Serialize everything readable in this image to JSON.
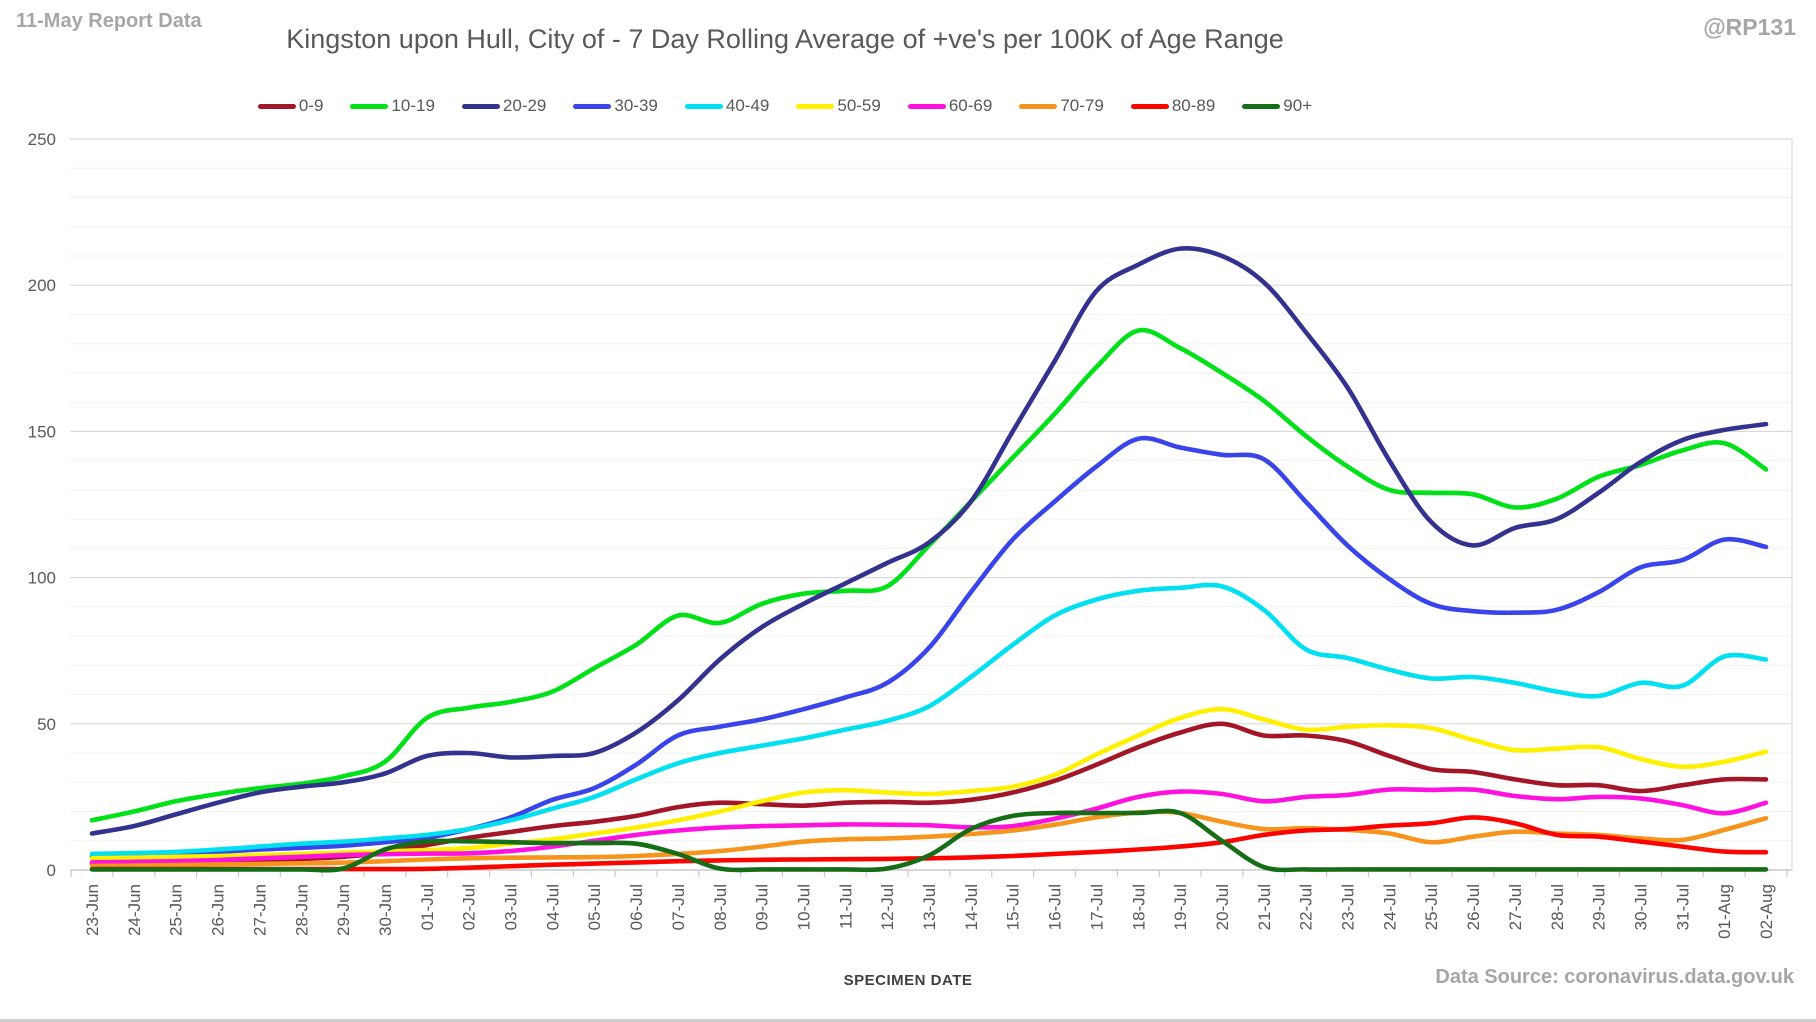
{
  "header": {
    "report_label": "11-May Report Data",
    "title": "Kingston upon Hull, City of - 7 Day Rolling Average of +ve's per 100K of Age Range",
    "handle": "@RP131"
  },
  "footer": {
    "xaxis_title": "SPECIMEN DATE",
    "source": "Data Source: coronavirus.data.gov.uk"
  },
  "chart_data": {
    "type": "line",
    "title": "Kingston upon Hull, City of - 7 Day Rolling Average of +ve's per 100K of Age Range",
    "xlabel": "SPECIMEN DATE",
    "ylabel": "",
    "ylim": [
      0,
      250
    ],
    "y_ticks": [
      0,
      50,
      100,
      150,
      200,
      250
    ],
    "y_minor_step": 10,
    "grid": true,
    "legend_position": "top",
    "categories": [
      "23-Jun",
      "24-Jun",
      "25-Jun",
      "26-Jun",
      "27-Jun",
      "28-Jun",
      "29-Jun",
      "30-Jun",
      "01-Jul",
      "02-Jul",
      "03-Jul",
      "04-Jul",
      "05-Jul",
      "06-Jul",
      "07-Jul",
      "08-Jul",
      "09-Jul",
      "10-Jul",
      "11-Jul",
      "12-Jul",
      "13-Jul",
      "14-Jul",
      "15-Jul",
      "16-Jul",
      "17-Jul",
      "18-Jul",
      "19-Jul",
      "20-Jul",
      "21-Jul",
      "22-Jul",
      "23-Jul",
      "24-Jul",
      "25-Jul",
      "26-Jul",
      "27-Jul",
      "28-Jul",
      "29-Jul",
      "30-Jul",
      "31-Jul",
      "01-Aug",
      "02-Aug"
    ],
    "series": [
      {
        "name": "0-9",
        "color": "#A31628",
        "values": [
          2.1,
          2.3,
          2.6,
          3,
          3.2,
          3.8,
          4.5,
          6,
          8.5,
          11,
          13,
          15,
          16.5,
          18.5,
          21.5,
          23,
          22.5,
          22,
          23,
          23.3,
          23,
          24,
          26.5,
          30.5,
          36,
          42,
          47,
          50,
          46,
          46,
          44,
          39,
          34.5,
          33.5,
          31,
          29,
          29,
          27,
          29,
          31,
          31
        ]
      },
      {
        "name": "10-19",
        "color": "#00E117",
        "values": [
          17,
          20,
          23.5,
          26,
          28,
          29.5,
          32,
          37,
          52,
          55.5,
          57.5,
          61,
          69,
          77,
          87,
          84.5,
          91,
          94.5,
          95.5,
          97,
          111,
          126,
          141,
          156,
          172,
          184.5,
          178.5,
          170,
          160.5,
          148.5,
          138,
          130,
          129,
          128.5,
          124,
          127,
          134.5,
          138.5,
          143.5,
          146,
          137
        ]
      },
      {
        "name": "20-29",
        "color": "#33338F",
        "values": [
          12.5,
          15,
          19,
          23,
          26.5,
          28.5,
          30,
          33,
          39,
          40,
          38.5,
          39,
          40,
          47,
          58,
          72,
          83,
          91,
          98,
          105,
          112,
          126,
          150,
          174,
          198,
          207,
          212.5,
          210,
          201,
          184,
          165,
          140,
          119,
          111,
          117,
          120,
          129,
          139.5,
          147,
          150.5,
          152.5
        ]
      },
      {
        "name": "30-39",
        "color": "#3944EA",
        "values": [
          4.5,
          5,
          5.5,
          6.2,
          7,
          7.6,
          8.3,
          9.5,
          11,
          14,
          18,
          24,
          28,
          36,
          46,
          49,
          51.5,
          55,
          59,
          64,
          76,
          95,
          113,
          126,
          138,
          147.5,
          144.5,
          142,
          140.5,
          126,
          111,
          99.5,
          91,
          88.5,
          88,
          89,
          95,
          103.5,
          106,
          113,
          110.5
        ]
      },
      {
        "name": "40-49",
        "color": "#00E0F0",
        "values": [
          5.5,
          5.8,
          6.2,
          7,
          8,
          9,
          9.7,
          10.8,
          12,
          14,
          17,
          21,
          25,
          31,
          36.5,
          40,
          42.5,
          45,
          48,
          51,
          56,
          66,
          77,
          87,
          92.5,
          95.5,
          96.5,
          97,
          89,
          75.5,
          72.5,
          68.5,
          65.5,
          66,
          64,
          61,
          59.5,
          64,
          63,
          73,
          72
        ]
      },
      {
        "name": "50-59",
        "color": "#FFF000",
        "values": [
          4,
          4.2,
          4.5,
          4.8,
          5.1,
          5.5,
          6,
          6.3,
          6.8,
          7.5,
          9,
          10.5,
          12.5,
          14.5,
          17,
          20,
          23.5,
          26.5,
          27.3,
          26.5,
          26,
          27,
          28.5,
          32.5,
          39.5,
          46,
          52,
          55,
          51.5,
          48,
          49,
          49.5,
          48.5,
          44.5,
          41,
          41.5,
          42,
          38,
          35.3,
          37,
          40.5
        ]
      },
      {
        "name": "60-69",
        "color": "#FF12DF",
        "values": [
          2.6,
          2.8,
          3,
          3.4,
          4,
          4.5,
          5.1,
          5.4,
          5.6,
          5.7,
          6.5,
          8,
          10,
          12,
          13.5,
          14.5,
          15,
          15.3,
          15.6,
          15.5,
          15.3,
          14.6,
          15,
          17.5,
          21,
          25,
          26.8,
          26,
          23.5,
          25,
          25.7,
          27.5,
          27.4,
          27.5,
          25.3,
          24.2,
          25,
          24.5,
          22.2,
          19.4,
          23
        ]
      },
      {
        "name": "70-79",
        "color": "#F7941C",
        "values": [
          1.4,
          1.5,
          1.7,
          1.9,
          2.1,
          2.3,
          2.5,
          3,
          3.6,
          4,
          4.2,
          4.3,
          4.4,
          4.8,
          5.5,
          6.5,
          8,
          9.7,
          10.5,
          10.8,
          11.4,
          12.3,
          13.5,
          15.5,
          18,
          19.7,
          19.5,
          16.5,
          14,
          14.3,
          13.7,
          12.5,
          9.5,
          11.4,
          13.1,
          12.5,
          12,
          10.8,
          10.3,
          13.7,
          17.7
        ]
      },
      {
        "name": "80-89",
        "color": "#FB0400",
        "values": [
          0.3,
          0.3,
          0.3,
          0.3,
          0.3,
          0.3,
          0.3,
          0.3,
          0.4,
          0.8,
          1.3,
          1.8,
          2.2,
          2.6,
          3,
          3.3,
          3.5,
          3.6,
          3.7,
          3.8,
          4,
          4.3,
          4.8,
          5.5,
          6.2,
          7,
          8,
          9.5,
          12,
          13.5,
          14,
          15.2,
          16,
          18,
          16,
          12,
          11.4,
          9.7,
          8,
          6.3,
          6.1
        ]
      },
      {
        "name": "90+",
        "color": "#156D15",
        "values": [
          0.2,
          0.2,
          0.2,
          0.2,
          0.2,
          0.2,
          0.5,
          7,
          9.7,
          9.8,
          9.5,
          9.2,
          9.2,
          9,
          5.5,
          0.5,
          0.2,
          0.2,
          0.2,
          0.5,
          5,
          14,
          18.5,
          19.5,
          19.5,
          19.5,
          19.5,
          10,
          1,
          0.2,
          0.2,
          0.2,
          0.2,
          0.2,
          0.2,
          0.2,
          0.2,
          0.2,
          0.2,
          0.2,
          0.2
        ]
      }
    ]
  }
}
